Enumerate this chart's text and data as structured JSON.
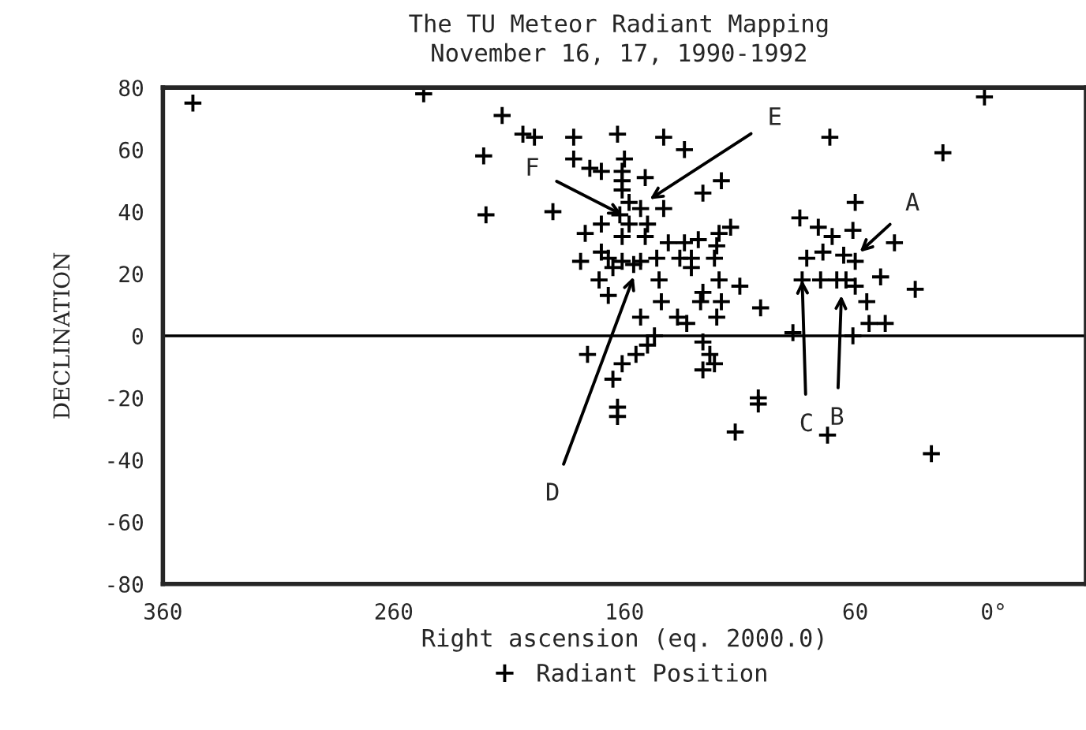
{
  "chart_data": {
    "type": "scatter",
    "title": "The TU Meteor Radiant Mapping",
    "subtitle": "November 16, 17, 1990-1992",
    "xlabel": "Right ascension (eq. 2000.0)",
    "ylabel": "DECLINATION",
    "xlim": [
      360,
      -40
    ],
    "xticks": [
      360,
      260,
      160,
      60,
      {
        "value": 0,
        "label": "0°"
      }
    ],
    "ylim": [
      -80,
      80
    ],
    "yticks": [
      -80,
      -60,
      -40,
      -20,
      0,
      20,
      40,
      60,
      80
    ],
    "marker": "cross",
    "legend": "bottom",
    "grid": false,
    "ref_lines": [
      {
        "axis": "y",
        "value": 0,
        "color": "#000000"
      }
    ],
    "annotations": [
      {
        "text": "A",
        "x": 58,
        "y": 27
      },
      {
        "text": "B",
        "x": 66,
        "y": 13
      },
      {
        "text": "C",
        "x": 83,
        "y": 18
      },
      {
        "text": "D",
        "x": 156,
        "y": 19
      },
      {
        "text": "E",
        "x": 149,
        "y": 44
      },
      {
        "text": "F",
        "x": 161,
        "y": 39
      }
    ],
    "series": [
      {
        "name": "Radiant Position",
        "color": "#000000",
        "x": [
          347,
          247,
          4,
          213,
          204,
          199,
          221,
          220,
          191,
          182,
          163,
          143,
          134,
          182,
          175,
          170,
          160,
          161,
          161,
          151,
          161,
          118,
          126,
          71,
          22,
          60,
          84,
          76,
          70,
          61,
          43,
          74,
          81,
          65,
          60,
          49,
          34,
          83,
          75,
          68,
          64,
          60,
          55,
          54,
          47,
          61,
          87,
          72,
          27,
          112,
          102,
          102,
          101,
          110,
          114,
          119,
          120,
          121,
          119,
          118,
          126,
          127,
          120,
          131,
          128,
          134,
          141,
          136,
          131,
          143,
          146,
          145,
          144,
          153,
          137,
          133,
          126,
          123,
          121,
          126,
          147,
          150,
          155,
          161,
          165,
          163,
          163,
          176,
          179,
          177,
          171,
          167,
          170,
          167,
          161,
          158,
          162,
          153,
          150,
          161,
          156,
          153,
          151,
          170,
          165,
          158
        ],
        "values": [
          75,
          78,
          77,
          71,
          65,
          64,
          58,
          39,
          40,
          64,
          65,
          64,
          60,
          57,
          54,
          53,
          57,
          53,
          50,
          51,
          47,
          50,
          46,
          64,
          59,
          43,
          38,
          35,
          32,
          34,
          30,
          27,
          25,
          26,
          24,
          19,
          15,
          18,
          18,
          18,
          18,
          16,
          11,
          4,
          4,
          0,
          1,
          -32,
          -38,
          -31,
          -20,
          -22,
          9,
          16,
          35,
          33,
          29,
          25,
          18,
          11,
          14,
          11,
          6,
          25,
          31,
          30,
          30,
          25,
          22,
          41,
          25,
          18,
          11,
          6,
          6,
          4,
          -2,
          -6,
          -9,
          -11,
          0,
          -3,
          -6,
          -9,
          -14,
          -23,
          -26,
          -6,
          24,
          33,
          18,
          13,
          27,
          25,
          32,
          36,
          39,
          41,
          36,
          24,
          23,
          24,
          32,
          36,
          22,
          43
        ]
      }
    ]
  }
}
